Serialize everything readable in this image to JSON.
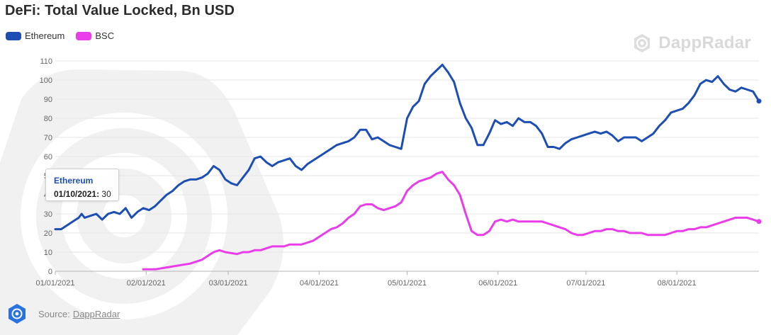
{
  "title": "DeFi: Total Value Locked, Bn USD",
  "brand": "DappRadar",
  "source": {
    "label": "Source:",
    "link": "DappRadar"
  },
  "tooltip": {
    "series": "Ethereum",
    "date": "01/10/2021",
    "value": "30"
  },
  "colors": {
    "ethereum": "#1d4eb3",
    "bsc": "#e83de8",
    "grid": "#e6e6e6",
    "axis": "#9a9a9a"
  },
  "chart_data": {
    "type": "line",
    "title": "DeFi: Total Value Locked, Bn USD",
    "xlabel": "",
    "ylabel": "",
    "ylim": [
      0,
      110
    ],
    "yticks": [
      "0",
      "10",
      "20",
      "30",
      "40",
      "50",
      "60",
      "70",
      "80",
      "90",
      "100",
      "110"
    ],
    "xlim": [
      0,
      240
    ],
    "xticks": [
      {
        "label": "01/01/2021",
        "day": 0
      },
      {
        "label": "02/01/2021",
        "day": 31
      },
      {
        "label": "03/01/2021",
        "day": 59
      },
      {
        "label": "04/01/2021",
        "day": 90
      },
      {
        "label": "05/01/2021",
        "day": 120
      },
      {
        "label": "06/01/2021",
        "day": 151
      },
      {
        "label": "07/01/2021",
        "day": 181
      },
      {
        "label": "08/01/2021",
        "day": 212
      }
    ],
    "legend": [
      "Ethereum",
      "BSC"
    ],
    "series": [
      {
        "name": "Ethereum",
        "x": [
          0,
          2,
          4,
          6,
          8,
          9,
          10,
          12,
          14,
          16,
          18,
          20,
          22,
          24,
          26,
          28,
          30,
          32,
          34,
          36,
          38,
          40,
          42,
          44,
          46,
          48,
          50,
          52,
          54,
          56,
          58,
          60,
          62,
          64,
          66,
          68,
          70,
          72,
          74,
          76,
          78,
          80,
          82,
          84,
          86,
          88,
          90,
          92,
          94,
          96,
          98,
          100,
          102,
          104,
          106,
          108,
          110,
          112,
          114,
          116,
          118,
          120,
          122,
          124,
          126,
          128,
          130,
          132,
          134,
          136,
          138,
          140,
          142,
          144,
          146,
          148,
          150,
          152,
          154,
          156,
          158,
          160,
          162,
          164,
          166,
          168,
          170,
          172,
          174,
          176,
          178,
          180,
          182,
          184,
          186,
          188,
          190,
          192,
          194,
          196,
          198,
          200,
          202,
          204,
          206,
          208,
          210,
          212,
          214,
          216,
          218,
          220,
          222,
          224,
          226,
          228,
          230,
          232,
          234,
          236,
          238,
          240
        ],
        "values": [
          22,
          22,
          24,
          26,
          28,
          30,
          28,
          29,
          30,
          27,
          30,
          31,
          30,
          33,
          28,
          31,
          33,
          32,
          34,
          37,
          40,
          42,
          45,
          47,
          48,
          48,
          49,
          51,
          55,
          53,
          48,
          46,
          45,
          49,
          53,
          59,
          60,
          57,
          55,
          57,
          58,
          59,
          55,
          53,
          56,
          58,
          60,
          62,
          64,
          66,
          67,
          68,
          70,
          74,
          74,
          69,
          70,
          68,
          66,
          65,
          64,
          80,
          86,
          89,
          98,
          102,
          105,
          108,
          104,
          99,
          88,
          80,
          75,
          66,
          66,
          72,
          79,
          77,
          78,
          76,
          80,
          78,
          78,
          76,
          72,
          65,
          65,
          64,
          67,
          69,
          70,
          71,
          72,
          73,
          72,
          73,
          71,
          68,
          70,
          70,
          70,
          68,
          70,
          72,
          76,
          79,
          83,
          84,
          85,
          88,
          92,
          98,
          100,
          99,
          102,
          98,
          95,
          94,
          96,
          95,
          94,
          89
        ]
      },
      {
        "name": "BSC",
        "x": [
          30,
          34,
          38,
          42,
          46,
          50,
          52,
          54,
          56,
          58,
          62,
          64,
          66,
          68,
          70,
          72,
          74,
          76,
          78,
          80,
          82,
          84,
          86,
          88,
          90,
          92,
          94,
          96,
          98,
          100,
          102,
          104,
          106,
          108,
          110,
          112,
          114,
          116,
          118,
          120,
          122,
          124,
          126,
          128,
          130,
          132,
          134,
          136,
          138,
          140,
          142,
          144,
          146,
          148,
          150,
          152,
          154,
          156,
          158,
          160,
          162,
          164,
          166,
          168,
          170,
          172,
          174,
          176,
          178,
          180,
          182,
          184,
          186,
          188,
          190,
          192,
          194,
          196,
          198,
          200,
          202,
          204,
          206,
          208,
          210,
          212,
          214,
          216,
          218,
          220,
          222,
          224,
          226,
          228,
          230,
          232,
          234,
          236,
          238,
          240
        ],
        "values": [
          1,
          1,
          2,
          3,
          4,
          6,
          8,
          10,
          11,
          10,
          9,
          10,
          10,
          11,
          11,
          12,
          13,
          13,
          13,
          14,
          14,
          14,
          15,
          16,
          18,
          20,
          22,
          23,
          25,
          28,
          30,
          34,
          35,
          35,
          33,
          32,
          33,
          34,
          36,
          42,
          45,
          47,
          48,
          49,
          51,
          52,
          48,
          45,
          40,
          30,
          21,
          19,
          19,
          21,
          26,
          27,
          26,
          27,
          26,
          26,
          26,
          26,
          26,
          25,
          24,
          23,
          22,
          20,
          19,
          19,
          20,
          21,
          21,
          22,
          22,
          21,
          21,
          20,
          20,
          20,
          19,
          19,
          19,
          19,
          20,
          21,
          21,
          22,
          22,
          23,
          23,
          24,
          25,
          26,
          27,
          28,
          28,
          28,
          27,
          26
        ]
      }
    ]
  }
}
